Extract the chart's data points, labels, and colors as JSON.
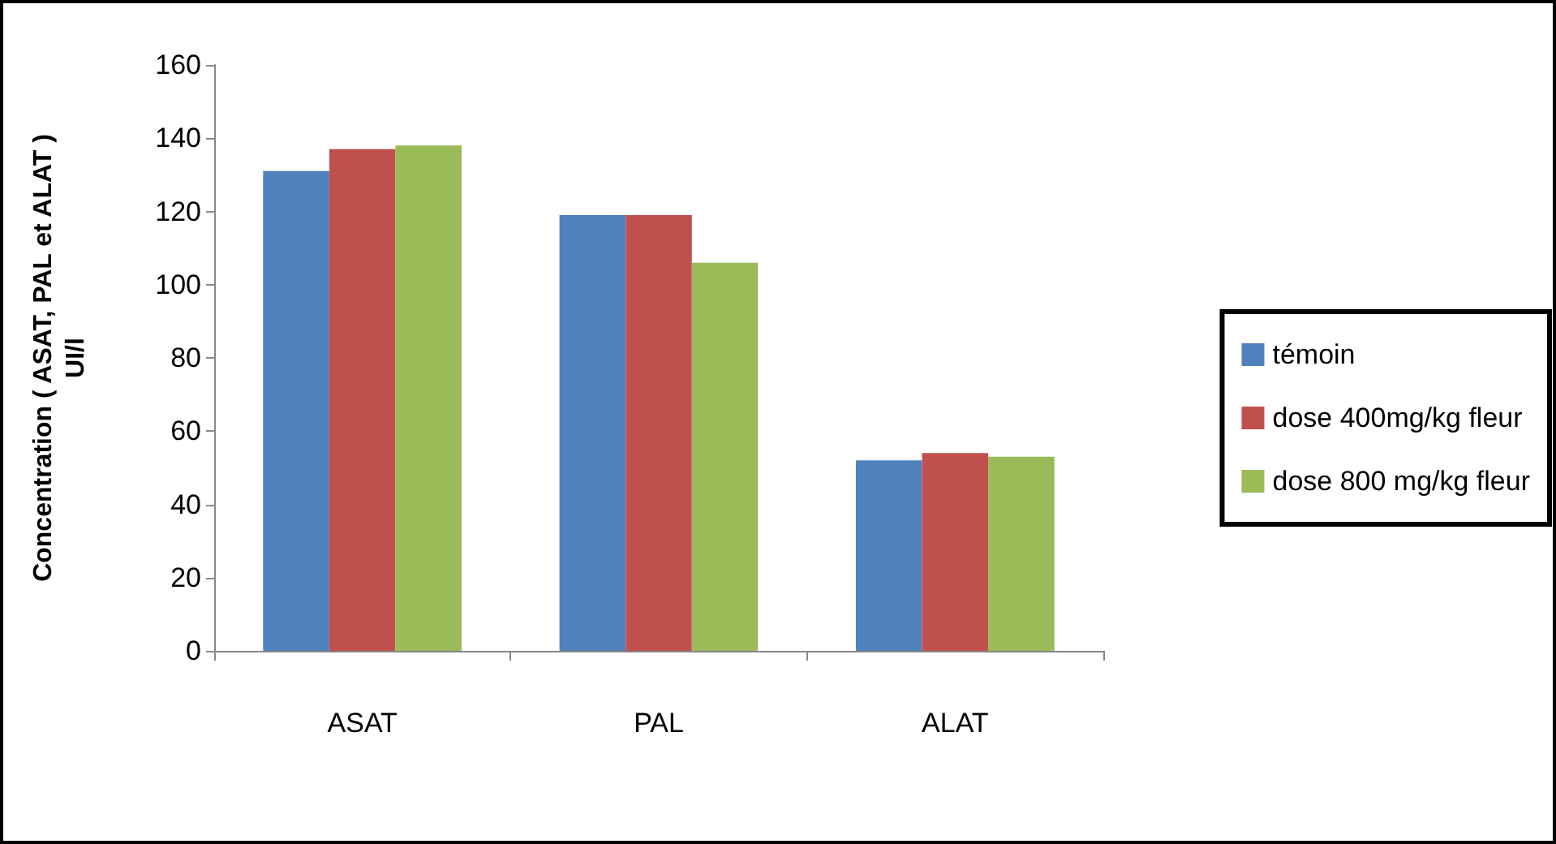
{
  "chart_data": {
    "type": "bar",
    "ylabel": "Concentration ( ASAT, PAL et ALAT )\nUI/l",
    "categories": [
      "ASAT",
      "PAL",
      "ALAT"
    ],
    "series": [
      {
        "name": "témoin",
        "color": "#4f81bd",
        "values": [
          131,
          119,
          52
        ]
      },
      {
        "name": "dose 400mg/kg fleur",
        "color": "#c0504d",
        "values": [
          137,
          119,
          54
        ]
      },
      {
        "name": "dose 800 mg/kg fleur",
        "color": "#9bbb59",
        "values": [
          138,
          106,
          53
        ]
      }
    ],
    "ylim": [
      0,
      160
    ],
    "yticks": [
      0,
      20,
      40,
      60,
      80,
      100,
      120,
      140,
      160
    ],
    "grid": false,
    "legend": "right"
  }
}
